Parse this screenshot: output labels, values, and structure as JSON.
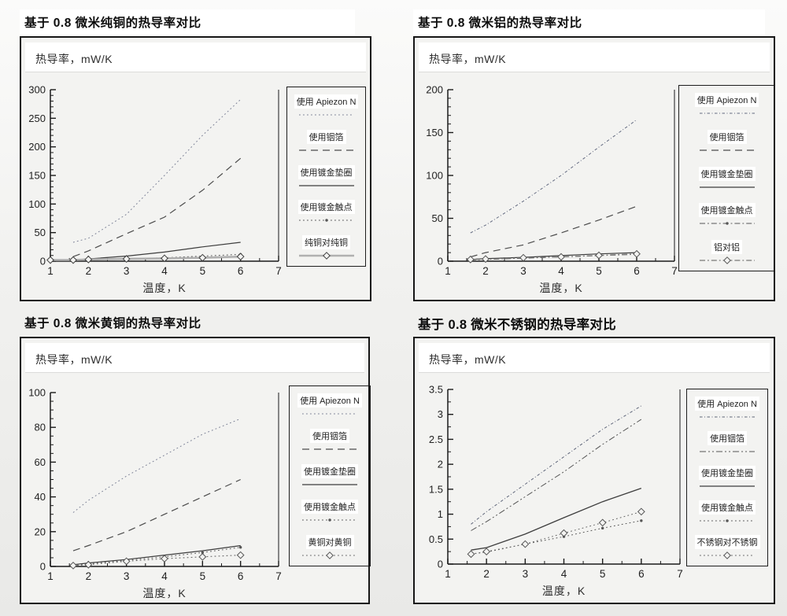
{
  "page": {
    "background": "#f1f1ef"
  },
  "chart_data": [
    {
      "type": "line",
      "title": "基于 0.8 微米纯铜的热导率对比",
      "ylabel": "热导率，mW/K",
      "xlabel": "温度，K",
      "xlim": [
        1,
        7
      ],
      "ylim": [
        0,
        300
      ],
      "xticks": [
        1,
        2,
        3,
        4,
        5,
        6,
        7
      ],
      "yticks": [
        0,
        50,
        100,
        150,
        200,
        250,
        300
      ],
      "y_minor_step": 10,
      "x_minor_step": 0.5,
      "grid": false,
      "legend_position": "right",
      "series": [
        {
          "name": "使用 Apiezon N",
          "line_style": "dotted",
          "marker": "none",
          "color": "#7b8095",
          "width": 1,
          "x": [
            1.6,
            2,
            3,
            4,
            5,
            6
          ],
          "y": [
            33,
            40,
            82,
            150,
            220,
            283
          ]
        },
        {
          "name": "使用铟箔",
          "line_style": "dashed",
          "marker": "none",
          "color": "#4c4c4c",
          "width": 1.2,
          "x": [
            1.6,
            2,
            3,
            4,
            5,
            6
          ],
          "y": [
            8,
            18,
            48,
            77,
            124,
            180
          ]
        },
        {
          "name": "使用镀金垫圈",
          "line_style": "solid",
          "marker": "none",
          "color": "#3d3d3d",
          "width": 1.2,
          "x": [
            1.6,
            2,
            3,
            4,
            5,
            6
          ],
          "y": [
            2,
            4,
            9,
            16,
            25,
            33
          ]
        },
        {
          "name": "使用镀金触点",
          "line_style": "dotted",
          "marker": "dot",
          "marker_color": "#565656",
          "color": "#565656",
          "width": 1,
          "x": [
            1.6,
            2,
            3,
            4,
            5,
            6
          ],
          "y": [
            1,
            2,
            4,
            6,
            9,
            12
          ]
        },
        {
          "name": "纯铜对纯铜",
          "line_style": "solid",
          "marker": "diamond",
          "marker_color": "#3f3f3f",
          "color": "#b0b0b0",
          "width": 2.6,
          "x": [
            1,
            1.6,
            2,
            3,
            4,
            5,
            6
          ],
          "y": [
            2,
            2,
            3,
            4,
            5,
            6,
            8
          ]
        }
      ]
    },
    {
      "type": "line",
      "title": "基于 0.8 微米铝的热导率对比",
      "ylabel": "热导率，mW/K",
      "xlabel": "温度，K",
      "xlim": [
        1,
        7
      ],
      "ylim": [
        0,
        200
      ],
      "xticks": [
        1,
        2,
        3,
        4,
        5,
        6,
        7
      ],
      "yticks": [
        0,
        50,
        100,
        150,
        200
      ],
      "y_minor_step": 10,
      "x_minor_step": 0.5,
      "grid": false,
      "legend_position": "right",
      "series": [
        {
          "name": "使用 Apiezon N",
          "line_style": "fine-dash-dot",
          "marker": "none",
          "color": "#636a80",
          "width": 1,
          "x": [
            1.6,
            2,
            3,
            4,
            5,
            6
          ],
          "y": [
            33,
            42,
            70,
            100,
            133,
            165
          ]
        },
        {
          "name": "使用铟箔",
          "line_style": "dashed",
          "marker": "none",
          "color": "#4c4c4c",
          "width": 1.2,
          "x": [
            1.6,
            2,
            3,
            4,
            5,
            6
          ],
          "y": [
            5,
            10,
            19,
            33,
            48,
            64
          ]
        },
        {
          "name": "使用镀金垫圈",
          "line_style": "solid",
          "marker": "none",
          "color": "#3d3d3d",
          "width": 1.2,
          "x": [
            1.6,
            2,
            3,
            4,
            5,
            6
          ],
          "y": [
            2,
            3,
            4.5,
            6.5,
            8.5,
            10
          ]
        },
        {
          "name": "使用镀金触点",
          "line_style": "dash-dot",
          "marker": "dot",
          "marker_color": "#565656",
          "color": "#565656",
          "width": 1,
          "x": [
            1.6,
            2,
            3,
            4,
            5,
            6
          ],
          "y": [
            1.5,
            2,
            3.5,
            5,
            6.5,
            8
          ]
        },
        {
          "name": "铝对铝",
          "line_style": "dash-dot",
          "marker": "diamond",
          "marker_color": "#555555",
          "color": "#777777",
          "width": 1.2,
          "x": [
            1.6,
            2,
            3,
            4,
            5,
            6
          ],
          "y": [
            2,
            2.5,
            4,
            5,
            6.8,
            8.5
          ]
        }
      ]
    },
    {
      "type": "line",
      "title": "基于 0.8 微米黄铜的热导率对比",
      "ylabel": "热导率，mW/K",
      "xlabel": "温度，K",
      "xlim": [
        1,
        7
      ],
      "ylim": [
        0,
        100
      ],
      "xticks": [
        1,
        2,
        3,
        4,
        5,
        6,
        7
      ],
      "yticks": [
        0,
        20,
        40,
        60,
        80,
        100
      ],
      "y_minor_step": 5,
      "x_minor_step": 0.5,
      "grid": false,
      "legend_position": "right",
      "series": [
        {
          "name": "使用 Apiezon N",
          "line_style": "dotted",
          "marker": "none",
          "color": "#7b8095",
          "width": 1,
          "x": [
            1.6,
            2,
            3,
            4,
            5,
            6
          ],
          "y": [
            31,
            38,
            52,
            64,
            76,
            85
          ]
        },
        {
          "name": "使用铟箔",
          "line_style": "dashed",
          "marker": "none",
          "color": "#4c4c4c",
          "width": 1.2,
          "x": [
            1.6,
            2,
            3,
            4,
            5,
            6
          ],
          "y": [
            9,
            12,
            20,
            30,
            40,
            50
          ]
        },
        {
          "name": "使用镀金垫圈",
          "line_style": "solid",
          "marker": "none",
          "color": "#3d3d3d",
          "width": 1.2,
          "x": [
            1.6,
            2,
            3,
            4,
            5,
            6
          ],
          "y": [
            1,
            2,
            4,
            6.5,
            9,
            12
          ]
        },
        {
          "name": "使用镀金触点",
          "line_style": "dotted",
          "marker": "dot",
          "marker_color": "#565656",
          "color": "#565656",
          "width": 1,
          "x": [
            1.6,
            2,
            3,
            4,
            5,
            6
          ],
          "y": [
            0.5,
            1.5,
            3.5,
            5.5,
            8,
            11
          ]
        },
        {
          "name": "黄铜对黄铜",
          "line_style": "dotted",
          "marker": "diamond",
          "marker_color": "#555555",
          "color": "#666666",
          "width": 1.1,
          "x": [
            1.6,
            2,
            3,
            4,
            5,
            6
          ],
          "y": [
            0.5,
            1,
            3,
            4.5,
            5.5,
            6.5
          ]
        }
      ]
    },
    {
      "type": "line",
      "title": "基于 0.8 微米不锈钢的热导率对比",
      "ylabel": "热导率，mW/K",
      "xlabel": "温度，K",
      "xlim": [
        1,
        7
      ],
      "ylim": [
        0,
        3.5
      ],
      "xticks": [
        1,
        2,
        3,
        4,
        5,
        6,
        7
      ],
      "yticks": [
        0,
        0.5,
        1,
        1.5,
        2,
        2.5,
        3,
        3.5
      ],
      "y_minor_step": 0.25,
      "x_minor_step": 0.5,
      "grid": false,
      "legend_position": "right",
      "series": [
        {
          "name": "使用 Apiezon N",
          "line_style": "fine-dash-dot",
          "marker": "none",
          "color": "#5d6478",
          "width": 1,
          "x": [
            1.6,
            2,
            3,
            4,
            5,
            6
          ],
          "y": [
            0.8,
            1.05,
            1.6,
            2.15,
            2.7,
            3.17
          ]
        },
        {
          "name": "使用铟箔",
          "line_style": "dash-dot-dot",
          "marker": "none",
          "color": "#555555",
          "width": 1,
          "x": [
            1.6,
            2,
            3,
            4,
            5,
            6
          ],
          "y": [
            0.67,
            0.85,
            1.35,
            1.85,
            2.4,
            2.9
          ]
        },
        {
          "name": "使用镀金垫圈",
          "line_style": "solid",
          "marker": "none",
          "color": "#3d3d3d",
          "width": 1.3,
          "x": [
            1.6,
            2,
            3,
            4,
            5,
            6
          ],
          "y": [
            0.28,
            0.33,
            0.6,
            0.93,
            1.25,
            1.52
          ]
        },
        {
          "name": "使用镀金触点",
          "line_style": "dotted",
          "marker": "dot",
          "marker_color": "#565656",
          "color": "#565656",
          "width": 1,
          "x": [
            1.6,
            2,
            3,
            4,
            5,
            6
          ],
          "y": [
            0.2,
            0.24,
            0.4,
            0.55,
            0.72,
            0.87
          ]
        },
        {
          "name": "不锈钢对不锈钢",
          "line_style": "dotted",
          "marker": "diamond",
          "marker_color": "#555555",
          "color": "#666666",
          "width": 1,
          "x": [
            1.6,
            2,
            3,
            4,
            5,
            6
          ],
          "y": [
            0.2,
            0.25,
            0.4,
            0.62,
            0.83,
            1.05
          ]
        }
      ]
    }
  ]
}
